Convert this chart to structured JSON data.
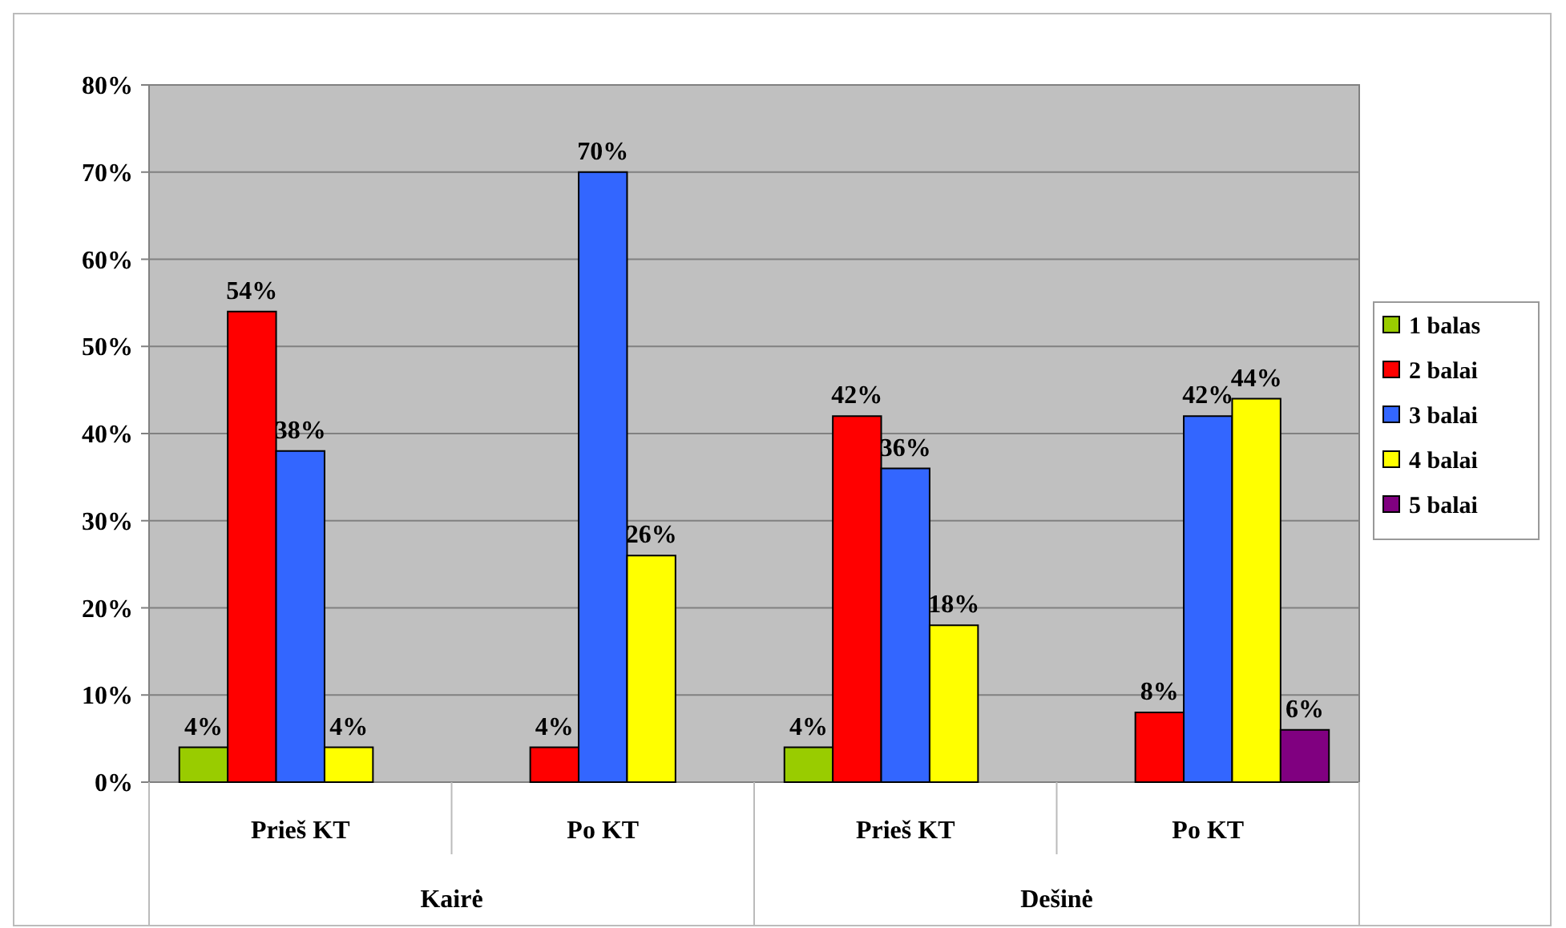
{
  "chart_data": {
    "type": "bar",
    "categories": [
      "Prieš KT",
      "Po KT",
      "Prieš KT",
      "Po KT"
    ],
    "series": [
      {
        "name": "1 balas",
        "color": "#99cc00",
        "values": [
          4,
          null,
          4,
          null
        ],
        "value_labels": [
          "4%",
          null,
          "4%",
          null
        ]
      },
      {
        "name": "2 balai",
        "color": "#ff0000",
        "values": [
          54,
          4,
          42,
          8
        ],
        "value_labels": [
          "54%",
          "4%",
          "42%",
          "8%"
        ]
      },
      {
        "name": "3 balai",
        "color": "#3366ff",
        "values": [
          38,
          70,
          36,
          42
        ],
        "value_labels": [
          "38%",
          "70%",
          "36%",
          "42%"
        ]
      },
      {
        "name": "4 balai",
        "color": "#ffff00",
        "values": [
          4,
          26,
          18,
          44
        ],
        "value_labels": [
          "4%",
          "26%",
          "18%",
          "44%"
        ]
      },
      {
        "name": "5 balai",
        "color": "#800080",
        "values": [
          null,
          null,
          null,
          6
        ],
        "value_labels": [
          null,
          null,
          null,
          "6%"
        ]
      }
    ],
    "ylim": [
      0,
      80
    ],
    "yticks": [
      {
        "value": 0,
        "label": "0%"
      },
      {
        "value": 10,
        "label": "10%"
      },
      {
        "value": 20,
        "label": "20%"
      },
      {
        "value": 30,
        "label": "30%"
      },
      {
        "value": 40,
        "label": "40%"
      },
      {
        "value": 50,
        "label": "50%"
      },
      {
        "value": 60,
        "label": "60%"
      },
      {
        "value": 70,
        "label": "70%"
      },
      {
        "value": 80,
        "label": "80%"
      }
    ],
    "grid": "y",
    "legend": "right",
    "annotations": [
      "Kairė",
      "Dešinė"
    ]
  }
}
